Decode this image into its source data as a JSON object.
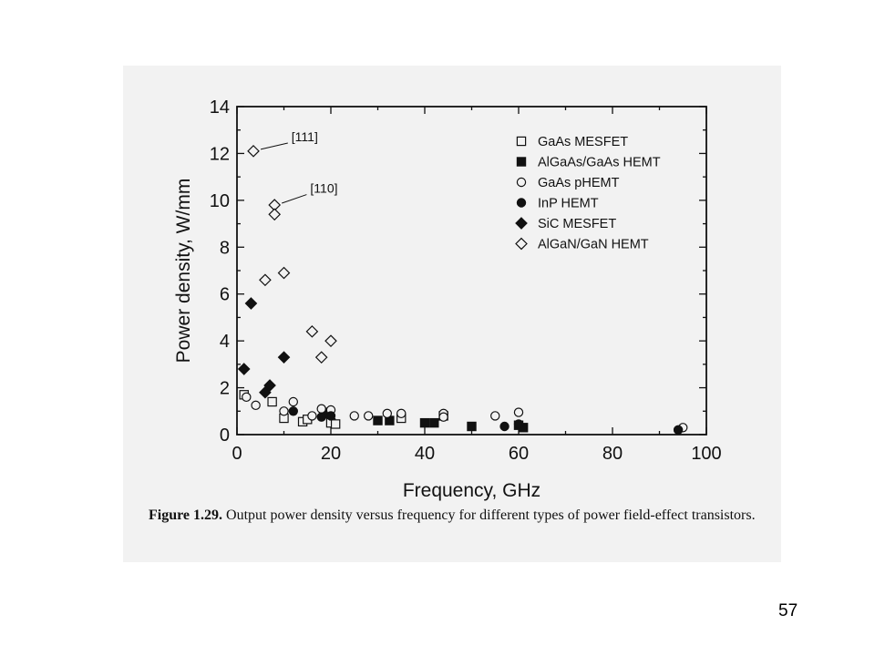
{
  "caption": {
    "label": "Figure 1.29.",
    "text": "Output power density versus frequency for different types of power field-effect transistors."
  },
  "page_number": "57",
  "chart_data": {
    "type": "scatter",
    "xlabel": "Frequency, GHz",
    "ylabel": "Power density, W/mm",
    "xlim": [
      0,
      100
    ],
    "ylim": [
      0,
      14
    ],
    "xticks": [
      0,
      20,
      40,
      60,
      80,
      100
    ],
    "yticks": [
      0,
      2,
      4,
      6,
      8,
      10,
      12,
      14
    ],
    "grid": false,
    "legend_position": "top-right",
    "series": [
      {
        "name": "GaAs MESFET",
        "marker": "square-open",
        "points": [
          [
            1.5,
            1.7
          ],
          [
            7.5,
            1.4
          ],
          [
            10,
            0.7
          ],
          [
            14,
            0.55
          ],
          [
            15,
            0.65
          ],
          [
            19,
            0.95
          ],
          [
            20,
            0.5
          ],
          [
            21,
            0.45
          ],
          [
            35,
            0.7
          ]
        ]
      },
      {
        "name": "AlGaAs/GaAs HEMT",
        "marker": "square-filled",
        "points": [
          [
            18.5,
            0.9
          ],
          [
            30,
            0.6
          ],
          [
            32.5,
            0.6
          ],
          [
            40,
            0.5
          ],
          [
            42,
            0.5
          ],
          [
            44,
            0.8
          ],
          [
            50,
            0.35
          ],
          [
            60,
            0.4
          ],
          [
            61,
            0.3
          ]
        ]
      },
      {
        "name": "GaAs pHEMT",
        "marker": "circle-open",
        "points": [
          [
            2,
            1.6
          ],
          [
            4,
            1.25
          ],
          [
            10,
            1.0
          ],
          [
            12,
            1.4
          ],
          [
            16,
            0.8
          ],
          [
            18,
            1.1
          ],
          [
            20,
            1.05
          ],
          [
            25,
            0.8
          ],
          [
            28,
            0.8
          ],
          [
            32,
            0.9
          ],
          [
            35,
            0.9
          ],
          [
            44,
            0.9
          ],
          [
            44,
            0.75
          ],
          [
            55,
            0.8
          ],
          [
            60,
            0.95
          ],
          [
            95,
            0.3
          ]
        ]
      },
      {
        "name": "InP HEMT",
        "marker": "circle-filled",
        "points": [
          [
            12,
            1.0
          ],
          [
            18,
            0.75
          ],
          [
            20,
            0.8
          ],
          [
            57,
            0.35
          ],
          [
            60,
            0.45
          ],
          [
            94,
            0.2
          ]
        ]
      },
      {
        "name": "SiC MESFET",
        "marker": "diamond-filled",
        "points": [
          [
            1.5,
            2.8
          ],
          [
            3,
            5.6
          ],
          [
            6,
            1.8
          ],
          [
            7,
            2.1
          ],
          [
            10,
            3.3
          ]
        ]
      },
      {
        "name": "AlGaN/GaN HEMT",
        "marker": "diamond-open",
        "points": [
          [
            3.5,
            12.1
          ],
          [
            8,
            9.8
          ],
          [
            8,
            9.4
          ],
          [
            6,
            6.6
          ],
          [
            10,
            6.9
          ],
          [
            16,
            4.4
          ],
          [
            18,
            3.3
          ],
          [
            20,
            4.0
          ]
        ]
      }
    ],
    "annotations": [
      {
        "text": "[111]",
        "x": 3.5,
        "y": 12.1,
        "label_x": 12,
        "label_y": 12.6
      },
      {
        "text": "[110]",
        "x": 8,
        "y": 9.8,
        "label_x": 16,
        "label_y": 10.4
      }
    ]
  }
}
